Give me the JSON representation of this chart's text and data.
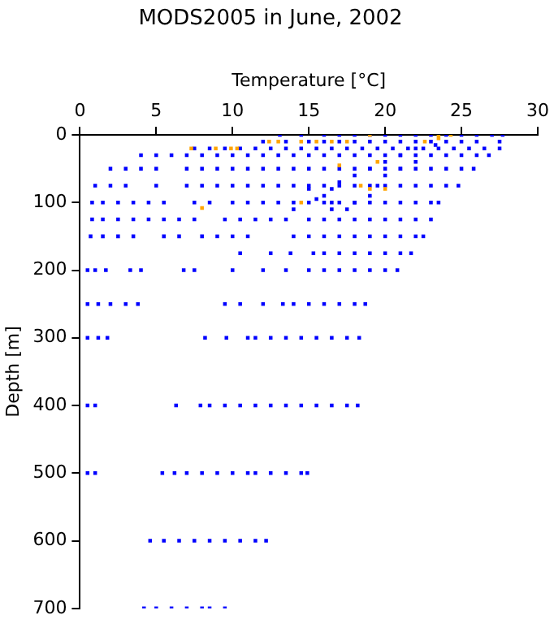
{
  "chart_data": {
    "type": "scatter",
    "title": "MODS2005 in June, 2002",
    "xlabel": "Temperature [°C]",
    "ylabel": "Depth [m]",
    "xlim": [
      0,
      30
    ],
    "xticks": [
      0,
      5,
      10,
      15,
      20,
      25,
      30
    ],
    "ylim": [
      700,
      0
    ],
    "yticks": [
      0,
      100,
      200,
      300,
      400,
      500,
      600,
      700
    ],
    "grid": false,
    "legend": false,
    "marker": "square",
    "series": [
      {
        "color": "#0000ff",
        "x": [
          13.1,
          14.5,
          16,
          17,
          18,
          19,
          20,
          21,
          22,
          23,
          24,
          25,
          26,
          27,
          27.7,
          12,
          13.5,
          15,
          16,
          17,
          18,
          19,
          20,
          21,
          22,
          23,
          24,
          25,
          26,
          27.5,
          7.5,
          8.5,
          9.5,
          10.5,
          11.5,
          12.5,
          13.5,
          14.5,
          15.5,
          16.5,
          17.5,
          18.5,
          19.5,
          20.5,
          21.5,
          22.5,
          23.5,
          24.5,
          25.5,
          26.5,
          27.5,
          4,
          5,
          6,
          7,
          8,
          9,
          10,
          11,
          12,
          13,
          14,
          15,
          16,
          17,
          18,
          19,
          20,
          21,
          22,
          23,
          24,
          25,
          26,
          26.8,
          2,
          3,
          4,
          5,
          7,
          8,
          9,
          10,
          11,
          12,
          13,
          14,
          15,
          16,
          17,
          18,
          19,
          20,
          21,
          22,
          23,
          24,
          25,
          25.8,
          1,
          2,
          3,
          5,
          7,
          8,
          9,
          10,
          11,
          12,
          13,
          14,
          15,
          16,
          17,
          18,
          19,
          20,
          21,
          22,
          23,
          24,
          24.8,
          0.8,
          1.5,
          2.5,
          3.5,
          4.5,
          5.5,
          7.5,
          8.5,
          10,
          11,
          12,
          13,
          14,
          15,
          16,
          17,
          18,
          19,
          20,
          21,
          22,
          23,
          23.5,
          0.8,
          1.5,
          2.5,
          3.5,
          4.5,
          5.5,
          6.5,
          7.5,
          9.5,
          10.5,
          11.5,
          12.5,
          13.5,
          15,
          16,
          17,
          18,
          19,
          20,
          21,
          22,
          23,
          0.7,
          1.5,
          2.5,
          3.5,
          5.5,
          6.5,
          8,
          9,
          10,
          11,
          14,
          15,
          16,
          17,
          18,
          19,
          20,
          21,
          22,
          22.5,
          10.5,
          12.5,
          13.8,
          15.3,
          16,
          17,
          18,
          19,
          20,
          21,
          21.7,
          0.5,
          1,
          1.7,
          3.3,
          4,
          6.8,
          7.5,
          10,
          12,
          13.5,
          15,
          16,
          17,
          18,
          19,
          20,
          20.8,
          0.5,
          1.2,
          2,
          3,
          3.8,
          9.5,
          10.5,
          12,
          13.3,
          14,
          15,
          16,
          17,
          18,
          18.7,
          0.5,
          1.2,
          1.8,
          8.2,
          9.6,
          11,
          11.5,
          12.5,
          13.5,
          14.5,
          15.5,
          16.5,
          17.5,
          18.3,
          0.5,
          1,
          6.3,
          7.9,
          8.5,
          9.5,
          10.5,
          11.5,
          12.5,
          13.5,
          14.5,
          15.5,
          16.5,
          17.5,
          18.2,
          0.5,
          1,
          5.4,
          6.2,
          7,
          8,
          9,
          10,
          11,
          11.5,
          12.5,
          13.5,
          14.5,
          14.9,
          4.6,
          5.5,
          6.5,
          7.5,
          8.5,
          9.5,
          10.5,
          11.5,
          12.2,
          4.2,
          5,
          6,
          7,
          8,
          8.5,
          9.5,
          23.3,
          22,
          21,
          20,
          19,
          18,
          17,
          16.5,
          16,
          16.5,
          16.5,
          20,
          19.5,
          19,
          18,
          17.5,
          22,
          21,
          15,
          15.5,
          14
        ],
        "values": [
          0,
          0,
          0,
          0,
          0,
          0,
          0,
          0,
          0,
          0,
          0,
          0,
          0,
          0,
          0,
          10,
          10,
          10,
          10,
          10,
          10,
          10,
          10,
          10,
          10,
          10,
          10,
          10,
          10,
          10,
          20,
          20,
          20,
          20,
          20,
          20,
          20,
          20,
          20,
          20,
          20,
          20,
          20,
          20,
          20,
          20,
          20,
          20,
          20,
          20,
          20,
          30,
          30,
          30,
          30,
          30,
          30,
          30,
          30,
          30,
          30,
          30,
          30,
          30,
          30,
          30,
          30,
          30,
          30,
          30,
          30,
          30,
          30,
          30,
          30,
          50,
          50,
          50,
          50,
          50,
          50,
          50,
          50,
          50,
          50,
          50,
          50,
          50,
          50,
          50,
          50,
          50,
          50,
          50,
          50,
          50,
          50,
          50,
          50,
          75,
          75,
          75,
          75,
          75,
          75,
          75,
          75,
          75,
          75,
          75,
          75,
          75,
          75,
          75,
          75,
          75,
          75,
          75,
          75,
          75,
          75,
          75,
          100,
          100,
          100,
          100,
          100,
          100,
          100,
          100,
          100,
          100,
          100,
          100,
          100,
          100,
          100,
          100,
          100,
          100,
          100,
          100,
          100,
          100,
          100,
          125,
          125,
          125,
          125,
          125,
          125,
          125,
          125,
          125,
          125,
          125,
          125,
          125,
          125,
          125,
          125,
          125,
          125,
          125,
          125,
          125,
          125,
          150,
          150,
          150,
          150,
          150,
          150,
          150,
          150,
          150,
          150,
          150,
          150,
          150,
          150,
          150,
          150,
          150,
          150,
          150,
          150,
          175,
          175,
          175,
          175,
          175,
          175,
          175,
          175,
          175,
          175,
          175,
          200,
          200,
          200,
          200,
          200,
          200,
          200,
          200,
          200,
          200,
          200,
          200,
          200,
          200,
          200,
          200,
          200,
          250,
          250,
          250,
          250,
          250,
          250,
          250,
          250,
          250,
          250,
          250,
          250,
          250,
          250,
          250,
          300,
          300,
          300,
          300,
          300,
          300,
          300,
          300,
          300,
          300,
          300,
          300,
          300,
          300,
          400,
          400,
          400,
          400,
          400,
          400,
          400,
          400,
          400,
          400,
          400,
          400,
          400,
          400,
          400,
          500,
          500,
          500,
          500,
          500,
          500,
          500,
          500,
          500,
          500,
          500,
          500,
          500,
          500,
          600,
          600,
          600,
          600,
          600,
          600,
          600,
          600,
          600,
          700,
          700,
          700,
          700,
          700,
          700,
          700,
          15,
          20,
          30,
          40,
          50,
          60,
          70,
          80,
          90,
          100,
          110,
          60,
          75,
          90,
          100,
          110,
          40,
          50,
          80,
          95,
          110
        ]
      },
      {
        "color": "#ffa500",
        "x": [
          19,
          23.5,
          24.3,
          12.4,
          13,
          14.5,
          15.5,
          16.5,
          17.5,
          22.6,
          7.3,
          8.9,
          9.9,
          10.3,
          17,
          19.5,
          18.4,
          19,
          20,
          14.5,
          8,
          23.5
        ],
        "values": [
          0,
          0,
          0,
          10,
          10,
          10,
          10,
          10,
          10,
          10,
          20,
          20,
          20,
          20,
          45,
          40,
          75,
          80,
          80,
          100,
          108,
          5
        ]
      }
    ]
  }
}
